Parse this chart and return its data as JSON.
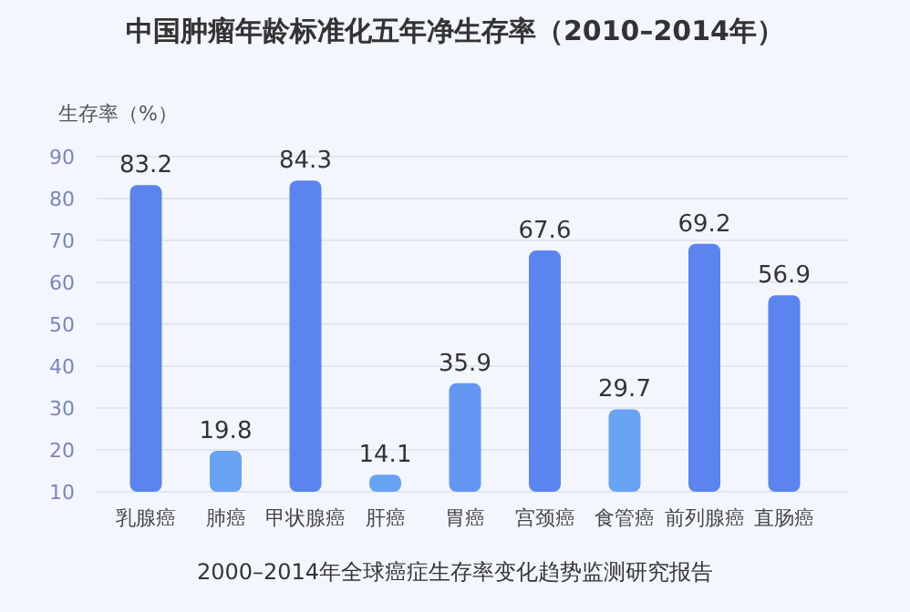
{
  "chart_data": {
    "type": "bar",
    "title": "中国肿瘤年龄标准化五年净生存率（2010–2014年）",
    "ylabel": "生存率（%）",
    "categories": [
      "乳腺癌",
      "肺癌",
      "甲状腺癌",
      "肝癌",
      "胃癌",
      "宫颈癌",
      "食管癌",
      "前列腺癌",
      "直肠癌"
    ],
    "values": [
      83.2,
      19.8,
      84.3,
      14.1,
      35.9,
      67.6,
      29.7,
      69.2,
      56.9
    ],
    "colors": [
      "#5b84ee",
      "#68a2f2",
      "#5b84ee",
      "#68a2f2",
      "#6296f0",
      "#5b84ee",
      "#68a2f2",
      "#5b84ee",
      "#5b84ee"
    ],
    "ylim": [
      10,
      90
    ],
    "yticks": [
      10,
      20,
      30,
      40,
      50,
      60,
      70,
      80,
      90
    ],
    "grid": "y",
    "data_labels": true,
    "annotations": [
      "2000–2014年全球癌症生存率变化趋势监测研究报告"
    ]
  }
}
